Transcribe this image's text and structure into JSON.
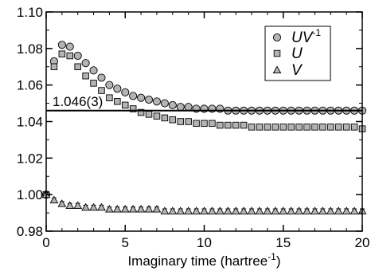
{
  "chart_data": {
    "type": "scatter",
    "title": "",
    "xlabel": "Imaginary time (hartree",
    "xlabel_sup": "-1",
    "xlabel_tail": ")",
    "ylabel": "",
    "xlim": [
      0,
      20
    ],
    "ylim": [
      0.98,
      1.1
    ],
    "x_ticks": [
      0,
      5,
      10,
      15,
      20
    ],
    "x_tick_labels": [
      "0",
      "5",
      "10",
      "15",
      "20"
    ],
    "y_ticks": [
      0.98,
      1.0,
      1.02,
      1.04,
      1.06,
      1.08,
      1.1
    ],
    "y_tick_labels": [
      "0.98",
      "1.00",
      "1.02",
      "1.04",
      "1.06",
      "1.08",
      "1.10"
    ],
    "grid": false,
    "legend_position": "top-right",
    "reference_line": {
      "y": 1.046,
      "label": "1.046(3)"
    },
    "series": [
      {
        "name": "UV",
        "name_sup": "-1",
        "marker": "circle",
        "color": "#b4b4b4",
        "x": [
          0,
          0.5,
          1,
          1.5,
          2,
          2.5,
          3,
          3.5,
          4,
          4.5,
          5,
          5.5,
          6,
          6.5,
          7,
          7.5,
          8,
          8.5,
          9,
          9.5,
          10,
          10.5,
          11,
          11.5,
          12,
          12.5,
          13,
          13.5,
          14,
          14.5,
          15,
          15.5,
          16,
          16.5,
          17,
          17.5,
          18,
          18.5,
          19,
          19.5,
          20
        ],
        "y": [
          1.0,
          1.073,
          1.082,
          1.081,
          1.076,
          1.072,
          1.068,
          1.064,
          1.06,
          1.058,
          1.056,
          1.054,
          1.053,
          1.052,
          1.051,
          1.05,
          1.049,
          1.048,
          1.048,
          1.047,
          1.047,
          1.047,
          1.047,
          1.046,
          1.046,
          1.046,
          1.046,
          1.046,
          1.046,
          1.046,
          1.046,
          1.046,
          1.046,
          1.046,
          1.046,
          1.046,
          1.046,
          1.046,
          1.046,
          1.046,
          1.046
        ]
      },
      {
        "name": "U",
        "marker": "square",
        "color": "#b4b4b4",
        "x": [
          0,
          0.5,
          1,
          1.5,
          2,
          2.5,
          3,
          3.5,
          4,
          4.5,
          5,
          5.5,
          6,
          6.5,
          7,
          7.5,
          8,
          8.5,
          9,
          9.5,
          10,
          10.5,
          11,
          11.5,
          12,
          12.5,
          13,
          13.5,
          14,
          14.5,
          15,
          15.5,
          16,
          16.5,
          17,
          17.5,
          18,
          18.5,
          19,
          19.5,
          20
        ],
        "y": [
          1.0,
          1.07,
          1.077,
          1.076,
          1.07,
          1.065,
          1.061,
          1.057,
          1.053,
          1.051,
          1.049,
          1.047,
          1.045,
          1.044,
          1.043,
          1.042,
          1.041,
          1.04,
          1.04,
          1.039,
          1.039,
          1.039,
          1.038,
          1.038,
          1.038,
          1.038,
          1.037,
          1.037,
          1.037,
          1.037,
          1.037,
          1.037,
          1.037,
          1.037,
          1.037,
          1.037,
          1.037,
          1.037,
          1.037,
          1.037,
          1.036
        ]
      },
      {
        "name": "V",
        "marker": "triangle",
        "color": "#b4b4b4",
        "x": [
          0,
          0.5,
          1,
          1.5,
          2,
          2.5,
          3,
          3.5,
          4,
          4.5,
          5,
          5.5,
          6,
          6.5,
          7,
          7.5,
          8,
          8.5,
          9,
          9.5,
          10,
          10.5,
          11,
          11.5,
          12,
          12.5,
          13,
          13.5,
          14,
          14.5,
          15,
          15.5,
          16,
          16.5,
          17,
          17.5,
          18,
          18.5,
          19,
          19.5,
          20
        ],
        "y": [
          1.0,
          0.997,
          0.995,
          0.994,
          0.994,
          0.993,
          0.993,
          0.993,
          0.992,
          0.992,
          0.992,
          0.992,
          0.992,
          0.992,
          0.992,
          0.991,
          0.991,
          0.991,
          0.991,
          0.991,
          0.991,
          0.991,
          0.991,
          0.991,
          0.991,
          0.991,
          0.991,
          0.991,
          0.991,
          0.991,
          0.991,
          0.991,
          0.991,
          0.991,
          0.991,
          0.991,
          0.991,
          0.991,
          0.991,
          0.991,
          0.991
        ]
      }
    ]
  }
}
